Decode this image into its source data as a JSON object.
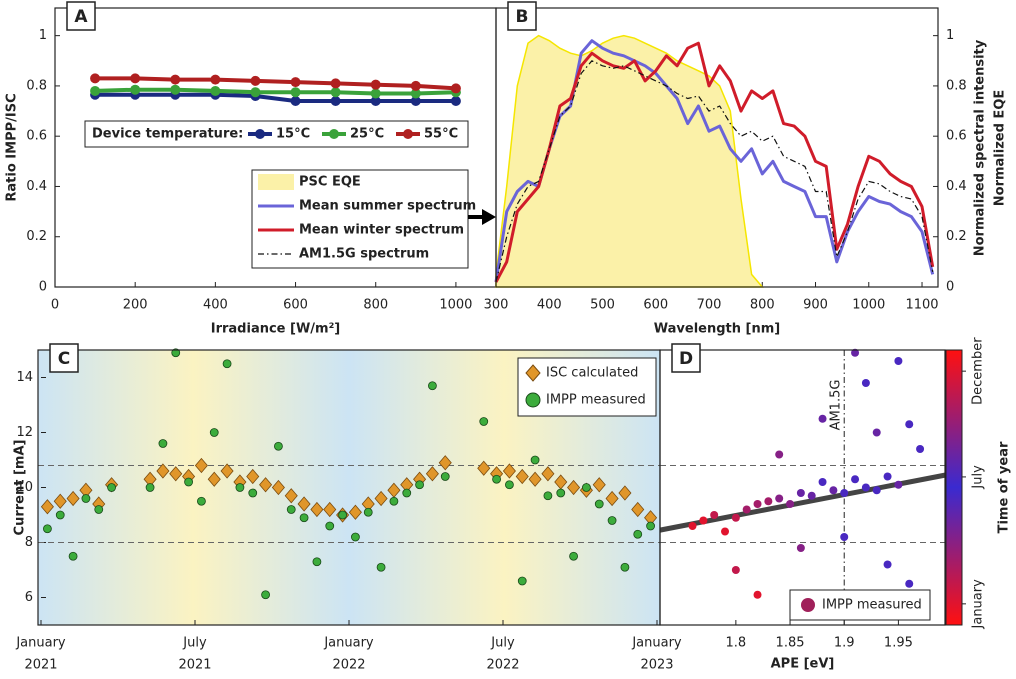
{
  "chart_data": [
    {
      "type": "line",
      "label": "A",
      "xlabel": "Irradiance [W/m²]",
      "ylabel": "Ratio IMPP/ISC",
      "legend_title": "Device temperature:",
      "x": [
        100,
        200,
        300,
        400,
        500,
        600,
        700,
        800,
        900,
        1000
      ],
      "series": [
        {
          "name": "15°C",
          "color": "#1a2a80",
          "values": [
            0.765,
            0.765,
            0.765,
            0.765,
            0.76,
            0.74,
            0.74,
            0.74,
            0.74,
            0.74
          ]
        },
        {
          "name": "25°C",
          "color": "#3aa23a",
          "values": [
            0.78,
            0.785,
            0.785,
            0.78,
            0.775,
            0.775,
            0.775,
            0.77,
            0.77,
            0.775
          ]
        },
        {
          "name": "55°C",
          "color": "#b02020",
          "values": [
            0.83,
            0.83,
            0.825,
            0.825,
            0.82,
            0.815,
            0.81,
            0.805,
            0.8,
            0.79
          ]
        }
      ],
      "xlim": [
        0,
        1100
      ],
      "xticks": [
        0,
        200,
        400,
        600,
        800,
        1000
      ],
      "ylim": [
        0,
        1.11
      ],
      "yticks": [
        0,
        0.2,
        0.4,
        0.6,
        0.8,
        1
      ]
    },
    {
      "type": "line",
      "label": "B",
      "xlabel": "Wavelength [nm]",
      "ylabel": "Normalized spectral intensity",
      "y2label": "Normalized EQE",
      "x": [
        300,
        320,
        340,
        360,
        380,
        400,
        420,
        440,
        460,
        480,
        500,
        520,
        540,
        560,
        580,
        600,
        620,
        640,
        660,
        680,
        700,
        720,
        740,
        760,
        780,
        800,
        820,
        840,
        860,
        880,
        900,
        920,
        940,
        960,
        980,
        1000,
        1020,
        1040,
        1060,
        1080,
        1100,
        1120
      ],
      "series": [
        {
          "name": "PSC EQE",
          "color": "#f5e600",
          "style": "area",
          "values": [
            0.05,
            0.4,
            0.8,
            0.97,
            1.0,
            0.98,
            0.95,
            0.93,
            0.92,
            0.94,
            0.97,
            0.99,
            1.0,
            0.99,
            0.97,
            0.95,
            0.93,
            0.9,
            0.88,
            0.86,
            0.84,
            0.8,
            0.7,
            0.35,
            0.05,
            0,
            null,
            null,
            null,
            null,
            null,
            null,
            null,
            null,
            null,
            null,
            null,
            null,
            null,
            null,
            null,
            null
          ]
        },
        {
          "name": "Mean summer spectrum",
          "color": "#6a64d8",
          "style": "line",
          "values": [
            0.02,
            0.3,
            0.38,
            0.42,
            0.4,
            0.55,
            0.68,
            0.72,
            0.93,
            0.98,
            0.95,
            0.93,
            0.92,
            0.9,
            0.88,
            0.85,
            0.8,
            0.75,
            0.65,
            0.72,
            0.62,
            0.64,
            0.55,
            0.5,
            0.55,
            0.45,
            0.5,
            0.42,
            0.4,
            0.38,
            0.28,
            0.28,
            0.1,
            0.22,
            0.3,
            0.36,
            0.34,
            0.33,
            0.3,
            0.28,
            0.22,
            0.05
          ]
        },
        {
          "name": "Mean winter spectrum",
          "color": "#d01c2a",
          "style": "line",
          "values": [
            0.02,
            0.1,
            0.3,
            0.35,
            0.4,
            0.55,
            0.72,
            0.75,
            0.88,
            0.93,
            0.9,
            0.88,
            0.87,
            0.9,
            0.82,
            0.86,
            0.92,
            0.88,
            0.95,
            0.97,
            0.8,
            0.88,
            0.82,
            0.7,
            0.78,
            0.75,
            0.78,
            0.65,
            0.64,
            0.6,
            0.5,
            0.48,
            0.15,
            0.25,
            0.4,
            0.52,
            0.5,
            0.45,
            0.42,
            0.4,
            0.32,
            0.08
          ]
        },
        {
          "name": "AM1.5G spectrum",
          "color": "#111111",
          "style": "dashdot",
          "values": [
            0.02,
            0.2,
            0.33,
            0.4,
            0.42,
            0.55,
            0.68,
            0.72,
            0.85,
            0.9,
            0.88,
            0.87,
            0.88,
            0.86,
            0.84,
            0.82,
            0.8,
            0.77,
            0.75,
            0.76,
            0.7,
            0.72,
            0.65,
            0.6,
            0.62,
            0.58,
            0.6,
            0.52,
            0.5,
            0.48,
            0.38,
            0.38,
            0.12,
            0.22,
            0.35,
            0.42,
            0.41,
            0.38,
            0.36,
            0.35,
            0.28,
            0.06
          ]
        }
      ],
      "xlim": [
        300,
        1130
      ],
      "xticks": [
        300,
        400,
        500,
        600,
        700,
        800,
        900,
        1000,
        1100
      ],
      "ylim": [
        0,
        1.11
      ],
      "yticks": [
        0,
        0.2,
        0.4,
        0.6,
        0.8,
        1
      ]
    },
    {
      "type": "scatter",
      "label": "C",
      "ylabel": "Current [mA]",
      "x": [
        "2021-01",
        "2021-01",
        "2021-02",
        "2021-02",
        "2021-03",
        "2021-03",
        "2021-04",
        "2021-04",
        "2021-05",
        "2021-05",
        "2021-06",
        "2021-06",
        "2021-07",
        "2021-07",
        "2021-08",
        "2021-08",
        "2021-09",
        "2021-09",
        "2021-10",
        "2021-10",
        "2021-11",
        "2021-11",
        "2021-12",
        "2021-12",
        "2022-01",
        "2022-01",
        "2022-02",
        "2022-02",
        "2022-03",
        "2022-03",
        "2022-04",
        "2022-04",
        "2022-05",
        "2022-05",
        "2022-06",
        "2022-06",
        "2022-07",
        "2022-07",
        "2022-08",
        "2022-08",
        "2022-09",
        "2022-09",
        "2022-10",
        "2022-10",
        "2022-11",
        "2022-11",
        "2022-12",
        "2022-12"
      ],
      "series": [
        {
          "name": "ISC calculated",
          "color": "#e0962a",
          "marker": "diamond",
          "values": [
            9.3,
            9.5,
            9.6,
            9.9,
            9.4,
            10.1,
            null,
            null,
            10.3,
            10.6,
            10.5,
            10.4,
            10.8,
            10.3,
            10.6,
            10.2,
            10.4,
            10.1,
            10.0,
            9.7,
            9.4,
            9.2,
            9.2,
            9.0,
            9.1,
            9.4,
            9.6,
            9.9,
            10.1,
            10.3,
            10.5,
            10.9,
            null,
            null,
            10.7,
            10.5,
            10.6,
            10.4,
            10.3,
            10.5,
            10.2,
            10.0,
            9.9,
            10.1,
            9.6,
            9.8,
            9.2,
            8.9
          ]
        },
        {
          "name": "IMPP measured",
          "color": "#3cac3c",
          "marker": "circle",
          "values": [
            8.5,
            9.0,
            7.5,
            9.6,
            9.2,
            10.0,
            null,
            null,
            10.0,
            11.6,
            14.9,
            10.2,
            9.5,
            12.0,
            14.5,
            10.0,
            9.8,
            6.1,
            11.5,
            9.2,
            8.9,
            7.3,
            8.6,
            9.0,
            8.2,
            9.1,
            7.1,
            9.5,
            9.8,
            10.1,
            13.7,
            10.4,
            null,
            null,
            12.4,
            10.3,
            10.1,
            6.6,
            11.0,
            9.7,
            9.8,
            7.5,
            10.0,
            9.4,
            8.8,
            7.1,
            8.3,
            8.6
          ]
        }
      ],
      "xlim": [
        "2021-01",
        "2023-01"
      ],
      "xticks": [
        {
          "value": "2021-01",
          "label": "January",
          "sublabel": "2021"
        },
        {
          "value": "2021-07",
          "label": "July",
          "sublabel": "2021"
        },
        {
          "value": "2022-01",
          "label": "January",
          "sublabel": "2022"
        },
        {
          "value": "2022-07",
          "label": "July",
          "sublabel": "2022"
        },
        {
          "value": "2023-01",
          "label": "January",
          "sublabel": "2023"
        }
      ],
      "ylim": [
        5,
        15
      ],
      "yticks": [
        6,
        8,
        10,
        12,
        14
      ],
      "hlines": [
        8,
        10.8
      ]
    },
    {
      "type": "scatter",
      "label": "D",
      "xlabel": "APE [eV]",
      "vline_label": "AM1.5G",
      "vline": 1.9,
      "x": [
        1.76,
        1.77,
        1.78,
        1.79,
        1.8,
        1.8,
        1.81,
        1.82,
        1.82,
        1.83,
        1.84,
        1.84,
        1.85,
        1.86,
        1.86,
        1.87,
        1.88,
        1.88,
        1.89,
        1.9,
        1.9,
        1.91,
        1.92,
        1.92,
        1.93,
        1.93,
        1.94,
        1.94,
        1.95,
        1.95,
        1.96,
        1.97,
        1.96,
        1.91
      ],
      "series": [
        {
          "name": "IMPP measured",
          "color": "#a0205a",
          "values": [
            8.6,
            8.8,
            9.0,
            8.4,
            8.9,
            7.0,
            9.2,
            6.1,
            9.4,
            9.5,
            9.6,
            11.2,
            9.4,
            9.8,
            7.8,
            9.7,
            10.2,
            12.5,
            9.9,
            9.8,
            8.2,
            10.3,
            10.0,
            13.8,
            9.9,
            12.0,
            10.4,
            7.2,
            14.6,
            10.1,
            12.3,
            11.4,
            6.5,
            14.9
          ],
          "c": [
            1,
            12,
            2,
            1,
            11,
            2,
            3,
            12,
            10,
            3,
            4,
            4,
            9,
            5,
            9,
            5,
            6,
            5,
            8,
            6,
            7,
            7,
            7,
            7,
            6,
            8,
            7,
            6,
            7,
            8,
            7,
            6,
            7,
            8
          ]
        }
      ],
      "fit": {
        "x": [
          1.73,
          1.993
        ],
        "y": [
          8.45,
          10.45
        ],
        "color": "#444444"
      },
      "colorbar_label": "Time of year",
      "colormap": [
        "#ff1010",
        "#3a2ad0",
        "#ff1010"
      ],
      "clim": [
        0,
        13
      ],
      "cticks": [
        {
          "value": 1,
          "label": "January"
        },
        {
          "value": 7,
          "label": "July"
        },
        {
          "value": 12,
          "label": "December"
        }
      ],
      "xlim": [
        1.73,
        1.993
      ],
      "xticks": [
        1.8,
        1.85,
        1.9,
        1.95
      ],
      "ylim": [
        5,
        15
      ],
      "hlines": [
        8,
        10.8
      ]
    }
  ]
}
